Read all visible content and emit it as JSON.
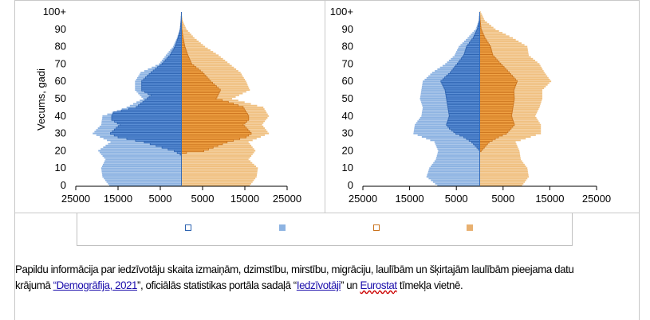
{
  "chart_data": [
    {
      "type": "bar",
      "orientation": "population-pyramid",
      "ylabel": "Vecums, gadi",
      "y_tick_labels": [
        "0",
        "10",
        "20",
        "30",
        "40",
        "50",
        "60",
        "70",
        "80",
        "90",
        "100+"
      ],
      "x_tick_labels": [
        "25000",
        "15000",
        "5000",
        "5000",
        "15000",
        "25000"
      ],
      "x_tick_values": [
        -25000,
        -15000,
        -5000,
        5000,
        15000,
        25000
      ],
      "xlim": [
        -25000,
        25000
      ],
      "ylim": [
        0,
        100
      ],
      "series_note": "values in thousands as [age, value] keypoints, interpolated per year",
      "series": [
        {
          "name": "",
          "side": "left",
          "style": "light",
          "color": "#8db3e2",
          "points": [
            [
              0,
              17.1
            ],
            [
              5,
              18.7
            ],
            [
              10,
              19
            ],
            [
              15,
              18
            ],
            [
              20,
              19.7
            ],
            [
              25,
              16.8
            ],
            [
              30,
              21
            ],
            [
              35,
              19
            ],
            [
              40,
              18.7
            ],
            [
              45,
              13
            ],
            [
              50,
              9.1
            ],
            [
              55,
              11
            ],
            [
              60,
              11
            ],
            [
              65,
              9.7
            ],
            [
              70,
              5.3
            ],
            [
              75,
              3.7
            ],
            [
              80,
              2
            ],
            [
              85,
              1.1
            ],
            [
              90,
              0.3
            ],
            [
              95,
              0.1
            ],
            [
              100,
              0
            ]
          ]
        },
        {
          "name": "",
          "side": "left",
          "style": "outlined",
          "color": "#5b8fd6",
          "stroke": "#2c62b0",
          "points": [
            [
              0,
              0
            ],
            [
              17,
              0
            ],
            [
              18,
              0.3
            ],
            [
              20,
              1.7
            ],
            [
              22,
              4.6
            ],
            [
              25,
              8.8
            ],
            [
              28,
              15
            ],
            [
              30,
              16.8
            ],
            [
              35,
              14.5
            ],
            [
              38,
              16.5
            ],
            [
              40,
              16.5
            ],
            [
              42,
              16
            ],
            [
              45,
              10.7
            ],
            [
              50,
              8.1
            ],
            [
              52,
              7.2
            ],
            [
              55,
              9.4
            ],
            [
              60,
              9.4
            ],
            [
              65,
              7.2
            ],
            [
              70,
              4.6
            ],
            [
              75,
              2.7
            ],
            [
              80,
              1.5
            ],
            [
              85,
              0.8
            ],
            [
              90,
              0.3
            ],
            [
              95,
              0.1
            ],
            [
              100,
              0
            ]
          ]
        },
        {
          "name": "",
          "side": "right",
          "style": "light",
          "color": "#f0c080",
          "points": [
            [
              0,
              16.2
            ],
            [
              5,
              17.8
            ],
            [
              10,
              18.1
            ],
            [
              15,
              15.9
            ],
            [
              20,
              17.5
            ],
            [
              25,
              15.9
            ],
            [
              30,
              20.7
            ],
            [
              35,
              19.1
            ],
            [
              40,
              20.7
            ],
            [
              45,
              19.4
            ],
            [
              50,
              12
            ],
            [
              55,
              16.2
            ],
            [
              60,
              15.3
            ],
            [
              65,
              14
            ],
            [
              70,
              11.4
            ],
            [
              75,
              8.8
            ],
            [
              80,
              5.6
            ],
            [
              85,
              3.1
            ],
            [
              90,
              1.2
            ],
            [
              95,
              0.3
            ],
            [
              100,
              0
            ]
          ]
        },
        {
          "name": "",
          "side": "right",
          "style": "outlined",
          "color": "#f2a446",
          "stroke": "#c9721c",
          "points": [
            [
              0,
              0
            ],
            [
              18,
              0
            ],
            [
              19,
              1.2
            ],
            [
              20,
              5.3
            ],
            [
              25,
              10.8
            ],
            [
              28,
              15.3
            ],
            [
              30,
              16.5
            ],
            [
              35,
              14.6
            ],
            [
              38,
              15.9
            ],
            [
              40,
              15.9
            ],
            [
              45,
              14.6
            ],
            [
              48,
              11.1
            ],
            [
              50,
              8.2
            ],
            [
              55,
              9.2
            ],
            [
              60,
              6.9
            ],
            [
              65,
              5
            ],
            [
              70,
              2.4
            ],
            [
              75,
              1.5
            ],
            [
              80,
              0.8
            ],
            [
              85,
              0.4
            ],
            [
              90,
              0.1
            ],
            [
              100,
              0
            ]
          ]
        }
      ]
    },
    {
      "type": "bar",
      "orientation": "population-pyramid",
      "y_tick_labels": [
        "0",
        "10",
        "20",
        "30",
        "40",
        "50",
        "60",
        "70",
        "80",
        "90",
        "100+"
      ],
      "x_tick_labels": [
        "25000",
        "15000",
        "5000",
        "5000",
        "15000",
        "25000"
      ],
      "x_tick_values": [
        -25000,
        -15000,
        -5000,
        5000,
        15000,
        25000
      ],
      "xlim": [
        -25000,
        25000
      ],
      "ylim": [
        0,
        100
      ],
      "series": [
        {
          "name": "",
          "side": "left",
          "style": "light",
          "color": "#8db3e2",
          "points": [
            [
              0,
              9.1
            ],
            [
              5,
              11.4
            ],
            [
              10,
              10.8
            ],
            [
              15,
              9.4
            ],
            [
              20,
              8.9
            ],
            [
              25,
              9.7
            ],
            [
              30,
              14.2
            ],
            [
              35,
              13.9
            ],
            [
              40,
              12.5
            ],
            [
              45,
              12.2
            ],
            [
              50,
              12.8
            ],
            [
              55,
              12.5
            ],
            [
              60,
              12.2
            ],
            [
              65,
              10.2
            ],
            [
              70,
              7.4
            ],
            [
              75,
              5.4
            ],
            [
              80,
              4.5
            ],
            [
              85,
              2.6
            ],
            [
              90,
              0.9
            ],
            [
              95,
              0.2
            ],
            [
              100,
              0
            ]
          ]
        },
        {
          "name": "",
          "side": "left",
          "style": "outlined",
          "color": "#5b8fd6",
          "stroke": "#2c62b0",
          "points": [
            [
              0,
              0
            ],
            [
              20,
              0
            ],
            [
              22,
              0.6
            ],
            [
              25,
              1.7
            ],
            [
              28,
              3.4
            ],
            [
              30,
              5.1
            ],
            [
              33,
              6.5
            ],
            [
              35,
              7.1
            ],
            [
              40,
              6.5
            ],
            [
              45,
              6.8
            ],
            [
              50,
              7.1
            ],
            [
              55,
              7.4
            ],
            [
              60,
              8.3
            ],
            [
              65,
              6.3
            ],
            [
              70,
              4.8
            ],
            [
              75,
              3.4
            ],
            [
              80,
              2.8
            ],
            [
              85,
              1.4
            ],
            [
              90,
              0.5
            ],
            [
              95,
              0.1
            ],
            [
              100,
              0
            ]
          ]
        },
        {
          "name": "",
          "side": "right",
          "style": "light",
          "color": "#f0c080",
          "points": [
            [
              0,
              9.1
            ],
            [
              5,
              10.5
            ],
            [
              10,
              10.2
            ],
            [
              15,
              8.8
            ],
            [
              20,
              8.5
            ],
            [
              25,
              7.7
            ],
            [
              30,
              13.1
            ],
            [
              35,
              13.1
            ],
            [
              40,
              11.9
            ],
            [
              45,
              12.8
            ],
            [
              50,
              13.4
            ],
            [
              55,
              13.4
            ],
            [
              60,
              15.3
            ],
            [
              65,
              13.9
            ],
            [
              70,
              12.8
            ],
            [
              75,
              10.5
            ],
            [
              80,
              10.2
            ],
            [
              85,
              7.1
            ],
            [
              90,
              3.4
            ],
            [
              95,
              1.1
            ],
            [
              100,
              0.2
            ]
          ]
        },
        {
          "name": "",
          "side": "right",
          "style": "outlined",
          "color": "#f2a446",
          "stroke": "#c9721c",
          "points": [
            [
              0,
              0
            ],
            [
              19,
              0
            ],
            [
              20,
              0.3
            ],
            [
              25,
              2
            ],
            [
              28,
              4
            ],
            [
              30,
              5.7
            ],
            [
              35,
              7.4
            ],
            [
              40,
              6.8
            ],
            [
              45,
              7.1
            ],
            [
              50,
              7.4
            ],
            [
              55,
              7.3
            ],
            [
              60,
              8
            ],
            [
              65,
              6.3
            ],
            [
              70,
              4.5
            ],
            [
              75,
              2.8
            ],
            [
              80,
              2.3
            ],
            [
              85,
              1.1
            ],
            [
              90,
              0.3
            ],
            [
              95,
              0.1
            ],
            [
              100,
              0
            ]
          ]
        }
      ]
    }
  ],
  "legend": {
    "items": [
      {
        "label": "",
        "style": "outlined",
        "color": "#2c62b0"
      },
      {
        "label": "",
        "style": "filled",
        "color": "#8db3e2"
      },
      {
        "label": "",
        "style": "outlined",
        "color": "#c9721c"
      },
      {
        "label": "",
        "style": "filled",
        "color": "#e8b070"
      }
    ]
  },
  "note": {
    "text1": "Papildu informācija par iedzīvotāju skaita izmaiņām, dzimstību, mirstību, migrāciju, laulībām un šķirtajām laulībām pieejama datu krājumā ",
    "link1": "“Demogrāfija, 2021",
    "text2": "”, oficiālās statistikas portāla sadaļā “",
    "link2": "Iedzīvotāji",
    "text3": "” un ",
    "link3": "Eurostat",
    "text4": " tīmekļa vietnē."
  }
}
